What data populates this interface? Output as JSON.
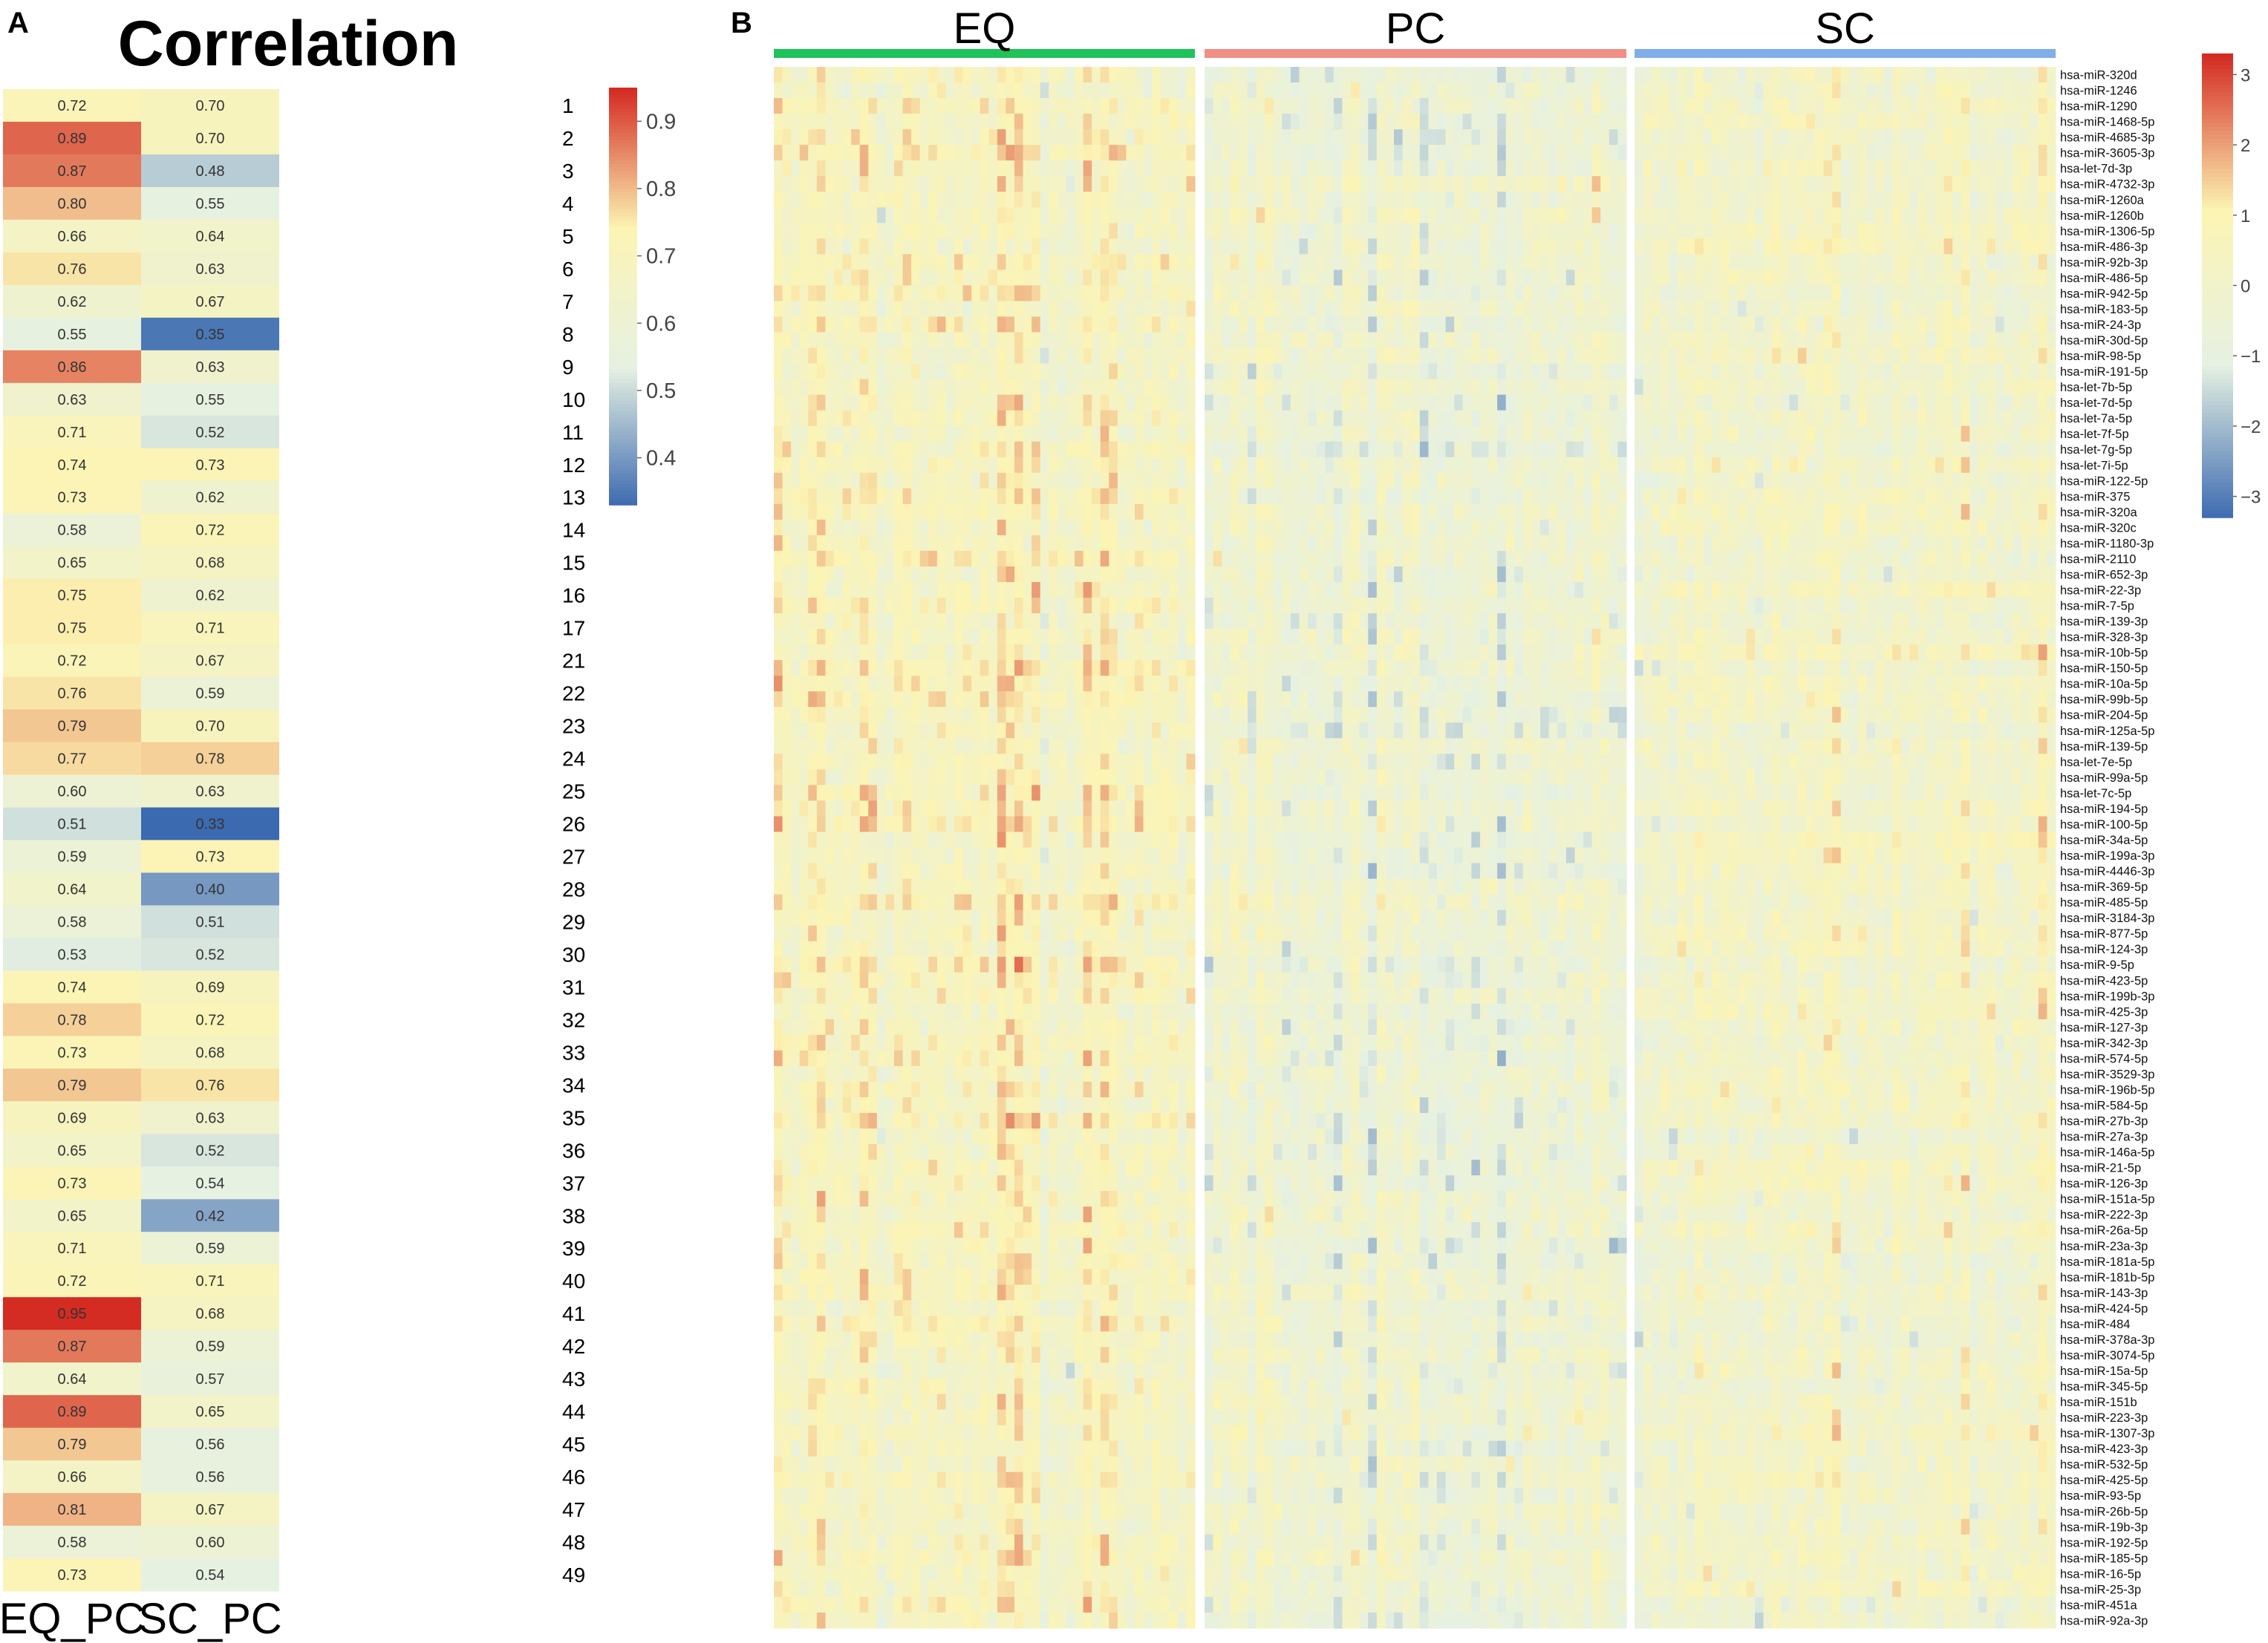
{
  "figure": {
    "panel_a_letter": "A",
    "panel_b_letter": "B",
    "palette": [
      "#3c6ab0",
      "#e6f1e2",
      "#fcf4b3",
      "#d42b23"
    ]
  },
  "chart_data": [
    {
      "type": "heatmap",
      "panel": "A",
      "title": "Correlation",
      "columns": [
        "EQ_PC",
        "SC_PC"
      ],
      "rows": [
        "1",
        "2",
        "3",
        "4",
        "5",
        "6",
        "7",
        "8",
        "9",
        "10",
        "11",
        "12",
        "13",
        "14",
        "15",
        "16",
        "17",
        "21",
        "22",
        "23",
        "24",
        "25",
        "26",
        "27",
        "28",
        "29",
        "30",
        "31",
        "32",
        "33",
        "34",
        "35",
        "36",
        "37",
        "38",
        "39",
        "40",
        "41",
        "42",
        "43",
        "44",
        "45",
        "46",
        "47",
        "48",
        "49"
      ],
      "values": [
        [
          0.72,
          0.7
        ],
        [
          0.89,
          0.7
        ],
        [
          0.87,
          0.48
        ],
        [
          0.8,
          0.55
        ],
        [
          0.66,
          0.64
        ],
        [
          0.76,
          0.63
        ],
        [
          0.62,
          0.67
        ],
        [
          0.55,
          0.35
        ],
        [
          0.86,
          0.63
        ],
        [
          0.63,
          0.55
        ],
        [
          0.71,
          0.52
        ],
        [
          0.74,
          0.73
        ],
        [
          0.73,
          0.62
        ],
        [
          0.58,
          0.72
        ],
        [
          0.65,
          0.68
        ],
        [
          0.75,
          0.62
        ],
        [
          0.75,
          0.71
        ],
        [
          0.72,
          0.67
        ],
        [
          0.76,
          0.59
        ],
        [
          0.79,
          0.7
        ],
        [
          0.77,
          0.78
        ],
        [
          0.6,
          0.63
        ],
        [
          0.51,
          0.33
        ],
        [
          0.59,
          0.73
        ],
        [
          0.64,
          0.4
        ],
        [
          0.58,
          0.51
        ],
        [
          0.53,
          0.52
        ],
        [
          0.74,
          0.69
        ],
        [
          0.78,
          0.72
        ],
        [
          0.73,
          0.68
        ],
        [
          0.79,
          0.76
        ],
        [
          0.69,
          0.63
        ],
        [
          0.65,
          0.52
        ],
        [
          0.73,
          0.54
        ],
        [
          0.65,
          0.42
        ],
        [
          0.71,
          0.59
        ],
        [
          0.72,
          0.71
        ],
        [
          0.95,
          0.68
        ],
        [
          0.87,
          0.59
        ],
        [
          0.64,
          0.57
        ],
        [
          0.89,
          0.65
        ],
        [
          0.79,
          0.56
        ],
        [
          0.66,
          0.56
        ],
        [
          0.81,
          0.67
        ],
        [
          0.58,
          0.6
        ],
        [
          0.73,
          0.54
        ]
      ],
      "legend": {
        "min": 0.33,
        "max": 0.95,
        "ticks": [
          0.9,
          0.8,
          0.7,
          0.6,
          0.5,
          0.4
        ],
        "placement": "top-right"
      }
    },
    {
      "type": "heatmap",
      "panel": "B",
      "groups": [
        {
          "name": "EQ",
          "color": "#1ec35a"
        },
        {
          "name": "PC",
          "color": "#ef8f85"
        },
        {
          "name": "SC",
          "color": "#80aee8"
        }
      ],
      "samples_per_group": 49,
      "rows": [
        "hsa-miR-320d",
        "hsa-miR-1246",
        "hsa-miR-1290",
        "hsa-miR-1468-5p",
        "hsa-miR-4685-3p",
        "hsa-miR-3605-3p",
        "hsa-let-7d-3p",
        "hsa-miR-4732-3p",
        "hsa-miR-1260a",
        "hsa-miR-1260b",
        "hsa-miR-1306-5p",
        "hsa-miR-486-3p",
        "hsa-miR-92b-3p",
        "hsa-miR-486-5p",
        "hsa-miR-942-5p",
        "hsa-miR-183-5p",
        "hsa-miR-24-3p",
        "hsa-miR-30d-5p",
        "hsa-miR-98-5p",
        "hsa-miR-191-5p",
        "hsa-let-7b-5p",
        "hsa-let-7d-5p",
        "hsa-let-7a-5p",
        "hsa-let-7f-5p",
        "hsa-let-7g-5p",
        "hsa-let-7i-5p",
        "hsa-miR-122-5p",
        "hsa-miR-375",
        "hsa-miR-320a",
        "hsa-miR-320c",
        "hsa-miR-1180-3p",
        "hsa-miR-2110",
        "hsa-miR-652-3p",
        "hsa-miR-22-3p",
        "hsa-miR-7-5p",
        "hsa-miR-139-3p",
        "hsa-miR-328-3p",
        "hsa-miR-10b-5p",
        "hsa-miR-150-5p",
        "hsa-miR-10a-5p",
        "hsa-miR-99b-5p",
        "hsa-miR-204-5p",
        "hsa-miR-125a-5p",
        "hsa-miR-139-5p",
        "hsa-let-7e-5p",
        "hsa-miR-99a-5p",
        "hsa-let-7c-5p",
        "hsa-miR-194-5p",
        "hsa-miR-100-5p",
        "hsa-miR-34a-5p",
        "hsa-miR-199a-3p",
        "hsa-miR-4446-3p",
        "hsa-miR-369-5p",
        "hsa-miR-485-5p",
        "hsa-miR-3184-3p",
        "hsa-miR-877-5p",
        "hsa-miR-124-3p",
        "hsa-miR-9-5p",
        "hsa-miR-423-5p",
        "hsa-miR-199b-3p",
        "hsa-miR-425-3p",
        "hsa-miR-127-3p",
        "hsa-miR-342-3p",
        "hsa-miR-574-5p",
        "hsa-miR-3529-3p",
        "hsa-miR-196b-5p",
        "hsa-miR-584-5p",
        "hsa-miR-27b-3p",
        "hsa-miR-27a-3p",
        "hsa-miR-146a-5p",
        "hsa-miR-21-5p",
        "hsa-miR-126-3p",
        "hsa-miR-151a-5p",
        "hsa-miR-222-3p",
        "hsa-miR-26a-5p",
        "hsa-miR-23a-3p",
        "hsa-miR-181a-5p",
        "hsa-miR-181b-5p",
        "hsa-miR-143-3p",
        "hsa-miR-424-5p",
        "hsa-miR-484",
        "hsa-miR-378a-3p",
        "hsa-miR-3074-5p",
        "hsa-miR-15a-5p",
        "hsa-miR-345-5p",
        "hsa-miR-151b",
        "hsa-miR-223-3p",
        "hsa-miR-1307-3p",
        "hsa-miR-423-3p",
        "hsa-miR-532-5p",
        "hsa-miR-425-5p",
        "hsa-miR-93-5p",
        "hsa-miR-26b-5p",
        "hsa-miR-19b-3p",
        "hsa-miR-192-5p",
        "hsa-miR-185-5p",
        "hsa-miR-16-5p",
        "hsa-miR-25-3p",
        "hsa-miR-451a",
        "hsa-miR-92a-3p"
      ],
      "value_range": [
        -3.3,
        3.3
      ],
      "legend": {
        "ticks": [
          3,
          2,
          1,
          0,
          -1,
          -2,
          -3
        ],
        "tick_labels": [
          "3",
          "2",
          "1",
          "0",
          "−1",
          "−2",
          "−3"
        ],
        "placement": "top-right"
      }
    }
  ]
}
